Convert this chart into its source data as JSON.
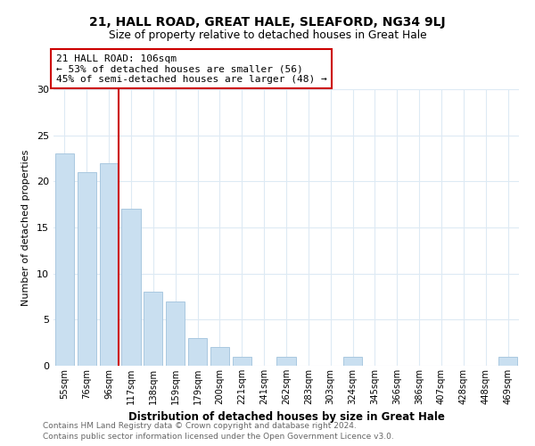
{
  "title1": "21, HALL ROAD, GREAT HALE, SLEAFORD, NG34 9LJ",
  "title2": "Size of property relative to detached houses in Great Hale",
  "xlabel": "Distribution of detached houses by size in Great Hale",
  "ylabel": "Number of detached properties",
  "bar_labels": [
    "55sqm",
    "76sqm",
    "96sqm",
    "117sqm",
    "138sqm",
    "159sqm",
    "179sqm",
    "200sqm",
    "221sqm",
    "241sqm",
    "262sqm",
    "283sqm",
    "303sqm",
    "324sqm",
    "345sqm",
    "366sqm",
    "386sqm",
    "407sqm",
    "428sqm",
    "448sqm",
    "469sqm"
  ],
  "bar_values": [
    23,
    21,
    22,
    17,
    8,
    7,
    3,
    2,
    1,
    0,
    1,
    0,
    0,
    1,
    0,
    0,
    0,
    0,
    0,
    0,
    1
  ],
  "bar_color": "#c9dff0",
  "bar_edge_color": "#aac8e0",
  "vline_x": 2,
  "vline_color": "#cc0000",
  "annotation_title": "21 HALL ROAD: 106sqm",
  "annotation_line1": "← 53% of detached houses are smaller (56)",
  "annotation_line2": "45% of semi-detached houses are larger (48) →",
  "annotation_box_color": "#ffffff",
  "annotation_box_edge": "#cc0000",
  "ylim": [
    0,
    30
  ],
  "yticks": [
    0,
    5,
    10,
    15,
    20,
    25,
    30
  ],
  "footer1": "Contains HM Land Registry data © Crown copyright and database right 2024.",
  "footer2": "Contains public sector information licensed under the Open Government Licence v3.0.",
  "bg_color": "#ffffff",
  "grid_color": "#ddeaf4"
}
